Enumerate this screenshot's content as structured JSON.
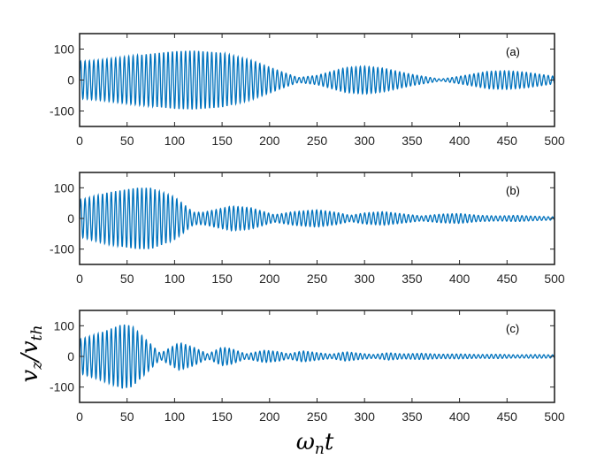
{
  "figure": {
    "xlabel": "ω",
    "xlabel_sub": "n",
    "xlabel_var": "t",
    "ylabel": "v",
    "ylabel_sub": "z",
    "ylabel_div": "/v",
    "ylabel_sub2": "th"
  },
  "colors": {
    "trace": "#0072BD",
    "axes": "#262626"
  },
  "chart_data": [
    {
      "type": "line",
      "panel_label": "(a)",
      "xlim": [
        0,
        500
      ],
      "ylim": [
        -150,
        150
      ],
      "xticks": [
        0,
        50,
        100,
        150,
        200,
        250,
        300,
        350,
        400,
        450,
        500
      ],
      "xtick_labels": [
        "0",
        "50",
        "100",
        "150",
        "200",
        "250",
        "300",
        "350",
        "400",
        "450",
        "500"
      ],
      "yticks": [
        100,
        0,
        -100
      ],
      "ytick_labels": [
        "100",
        "0",
        "-100"
      ],
      "oscillation_period": 4.6,
      "envelope": [
        [
          0,
          60
        ],
        [
          20,
          65
        ],
        [
          60,
          80
        ],
        [
          100,
          93
        ],
        [
          120,
          95
        ],
        [
          150,
          88
        ],
        [
          180,
          65
        ],
        [
          210,
          30
        ],
        [
          230,
          8
        ],
        [
          250,
          15
        ],
        [
          280,
          40
        ],
        [
          300,
          45
        ],
        [
          320,
          38
        ],
        [
          350,
          18
        ],
        [
          380,
          3
        ],
        [
          400,
          12
        ],
        [
          430,
          28
        ],
        [
          450,
          30
        ],
        [
          470,
          25
        ],
        [
          500,
          12
        ]
      ]
    },
    {
      "type": "line",
      "panel_label": "(b)",
      "xlim": [
        0,
        500
      ],
      "ylim": [
        -150,
        150
      ],
      "xticks": [
        0,
        50,
        100,
        150,
        200,
        250,
        300,
        350,
        400,
        450,
        500
      ],
      "xtick_labels": [
        "0",
        "50",
        "100",
        "150",
        "200",
        "250",
        "300",
        "350",
        "400",
        "450",
        "500"
      ],
      "yticks": [
        100,
        0,
        -100
      ],
      "ytick_labels": [
        "100",
        "0",
        "-100"
      ],
      "oscillation_period": 4.6,
      "envelope": [
        [
          0,
          60
        ],
        [
          30,
          85
        ],
        [
          60,
          100
        ],
        [
          75,
          100
        ],
        [
          100,
          70
        ],
        [
          120,
          20
        ],
        [
          130,
          20
        ],
        [
          160,
          40
        ],
        [
          180,
          35
        ],
        [
          205,
          12
        ],
        [
          225,
          22
        ],
        [
          250,
          28
        ],
        [
          270,
          20
        ],
        [
          285,
          10
        ],
        [
          300,
          18
        ],
        [
          320,
          22
        ],
        [
          340,
          15
        ],
        [
          360,
          8
        ],
        [
          380,
          14
        ],
        [
          400,
          16
        ],
        [
          420,
          10
        ],
        [
          440,
          8
        ],
        [
          460,
          10
        ],
        [
          480,
          7
        ],
        [
          500,
          5
        ]
      ]
    },
    {
      "type": "line",
      "panel_label": "(c)",
      "xlim": [
        0,
        500
      ],
      "ylim": [
        -150,
        150
      ],
      "xticks": [
        0,
        50,
        100,
        150,
        200,
        250,
        300,
        350,
        400,
        450,
        500
      ],
      "xtick_labels": [
        "0",
        "50",
        "100",
        "150",
        "200",
        "250",
        "300",
        "350",
        "400",
        "450",
        "500"
      ],
      "yticks": [
        100,
        0,
        -100
      ],
      "ytick_labels": [
        "100",
        "0",
        "-100"
      ],
      "oscillation_period": 4.6,
      "envelope": [
        [
          0,
          55
        ],
        [
          20,
          75
        ],
        [
          45,
          105
        ],
        [
          55,
          100
        ],
        [
          75,
          40
        ],
        [
          85,
          10
        ],
        [
          105,
          45
        ],
        [
          120,
          30
        ],
        [
          135,
          8
        ],
        [
          150,
          30
        ],
        [
          160,
          25
        ],
        [
          175,
          8
        ],
        [
          195,
          20
        ],
        [
          210,
          15
        ],
        [
          220,
          8
        ],
        [
          235,
          18
        ],
        [
          250,
          12
        ],
        [
          265,
          7
        ],
        [
          280,
          15
        ],
        [
          295,
          10
        ],
        [
          310,
          6
        ],
        [
          325,
          12
        ],
        [
          340,
          8
        ],
        [
          360,
          10
        ],
        [
          380,
          7
        ],
        [
          400,
          8
        ],
        [
          420,
          6
        ],
        [
          440,
          7
        ],
        [
          460,
          5
        ],
        [
          480,
          6
        ],
        [
          500,
          5
        ]
      ]
    }
  ]
}
